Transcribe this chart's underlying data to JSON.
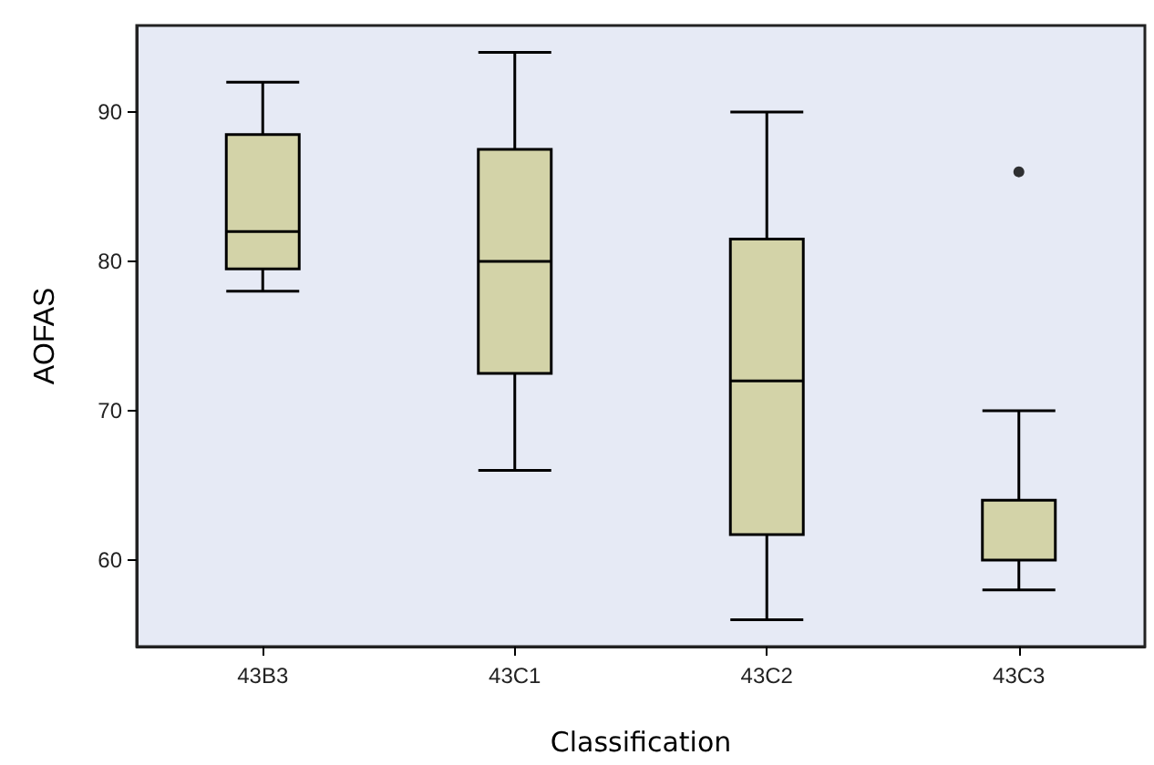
{
  "chart_data": {
    "type": "box",
    "xlabel": "Classification",
    "ylabel": "AOFAS",
    "categories": [
      "43B3",
      "43C1",
      "43C2",
      "43C3"
    ],
    "color": "#d3d3a8",
    "boxes": [
      {
        "low": 78,
        "q1": 79.5,
        "median": 82,
        "q3": 88.5,
        "high": 92
      },
      {
        "low": 66,
        "q1": 72.5,
        "median": 80,
        "q3": 87.5,
        "high": 94
      },
      {
        "low": 56,
        "q1": 61.7,
        "median": 72,
        "q3": 81.5,
        "high": 90
      },
      {
        "low": 58,
        "q1": 60,
        "median": 60,
        "q3": 64,
        "high": 70,
        "outliers": [
          86
        ]
      }
    ],
    "ylim": [
      54.2,
      95.8
    ],
    "yticks": [
      60,
      70,
      80,
      90
    ],
    "grid": false,
    "legend": false
  }
}
